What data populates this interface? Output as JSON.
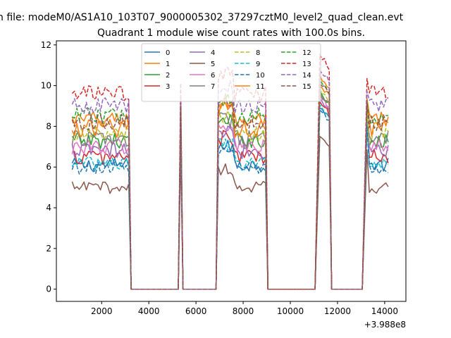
{
  "figure": {
    "suptitle": "n file: modeM0/AS1A10_103T07_9000005302_37297cztM0_level2_quad_clean.evt"
  },
  "chart_data": {
    "type": "line",
    "title": "Quadrant 1 module wise count rates with 100.0s bins.",
    "xlabel": "",
    "ylabel": "",
    "x_offset_label": "+3.988e8",
    "xlim": [
      80,
      14900
    ],
    "ylim": [
      -0.6,
      12.2
    ],
    "xticks": [
      2000,
      4000,
      6000,
      8000,
      10000,
      12000,
      14000
    ],
    "yticks": [
      0,
      2,
      4,
      6,
      8,
      10,
      12
    ],
    "grid": false,
    "legend_position": "upper center",
    "x_segments": [
      {
        "x_start": 750,
        "x_end": 3150,
        "step": 100,
        "on": true
      },
      {
        "x_start": 3250,
        "x_end": 5250,
        "step": 100,
        "on": false
      },
      {
        "x_start": 5350,
        "x_end": 5350,
        "step": 100,
        "on": true
      },
      {
        "x_start": 5450,
        "x_end": 6850,
        "step": 100,
        "on": false
      },
      {
        "x_start": 6950,
        "x_end": 8950,
        "step": 100,
        "on": true
      },
      {
        "x_start": 9050,
        "x_end": 11050,
        "step": 100,
        "on": false
      },
      {
        "x_start": 11250,
        "x_end": 11650,
        "step": 100,
        "on": true
      },
      {
        "x_start": 11750,
        "x_end": 13050,
        "step": 100,
        "on": false
      },
      {
        "x_start": 13250,
        "x_end": 14150,
        "step": 100,
        "on": true
      }
    ],
    "ramps": [
      {
        "from": 3150,
        "to": 3250,
        "dir": "down"
      },
      {
        "from": 5250,
        "to": 5350,
        "dir": "up"
      },
      {
        "from": 5350,
        "to": 5450,
        "dir": "down"
      },
      {
        "from": 6850,
        "to": 6950,
        "dir": "up"
      },
      {
        "from": 8950,
        "to": 9050,
        "dir": "down"
      },
      {
        "from": 11050,
        "to": 11250,
        "dir": "up"
      },
      {
        "from": 11650,
        "to": 11750,
        "dir": "down"
      },
      {
        "from": 13050,
        "to": 13250,
        "dir": "up"
      }
    ],
    "series": [
      {
        "name": "0",
        "color": "#1f77b4",
        "dash": "solid",
        "level": 6.1,
        "peak": 9.0,
        "noise": 0.35
      },
      {
        "name": "1",
        "color": "#ff7f0e",
        "dash": "solid",
        "level": 8.3,
        "peak": 10.4,
        "noise": 0.45
      },
      {
        "name": "2",
        "color": "#2ca02c",
        "dash": "solid",
        "level": 7.3,
        "peak": 9.7,
        "noise": 0.4
      },
      {
        "name": "3",
        "color": "#d62728",
        "dash": "solid",
        "level": 6.5,
        "peak": 9.2,
        "noise": 0.4
      },
      {
        "name": "4",
        "color": "#9467bd",
        "dash": "solid",
        "level": 6.8,
        "peak": 9.4,
        "noise": 0.4
      },
      {
        "name": "5",
        "color": "#8c564b",
        "dash": "solid",
        "level": 5.0,
        "peak": 7.6,
        "noise": 0.3
      },
      {
        "name": "6",
        "color": "#e377c2",
        "dash": "solid",
        "level": 7.0,
        "peak": 9.5,
        "noise": 0.4
      },
      {
        "name": "7",
        "color": "#7f7f7f",
        "dash": "solid",
        "level": 7.4,
        "peak": 9.6,
        "noise": 0.4
      },
      {
        "name": "8",
        "color": "#bcbd22",
        "dash": "dashed",
        "level": 7.6,
        "peak": 9.8,
        "noise": 0.4
      },
      {
        "name": "9",
        "color": "#17becf",
        "dash": "dashed",
        "level": 6.2,
        "peak": 9.1,
        "noise": 0.35
      },
      {
        "name": "10",
        "color": "#1f77b4",
        "dash": "dashed",
        "level": 6.0,
        "peak": 8.9,
        "noise": 0.35
      },
      {
        "name": "11",
        "color": "#ff7f0e",
        "dash": "solid",
        "level": 7.9,
        "peak": 10.1,
        "noise": 0.45
      },
      {
        "name": "12",
        "color": "#2ca02c",
        "dash": "dashed",
        "level": 8.5,
        "peak": 10.3,
        "noise": 0.4
      },
      {
        "name": "13",
        "color": "#d62728",
        "dash": "dashed",
        "level": 9.6,
        "peak": 11.5,
        "noise": 0.4
      },
      {
        "name": "14",
        "color": "#9467bd",
        "dash": "dashed",
        "level": 9.0,
        "peak": 10.8,
        "noise": 0.4
      },
      {
        "name": "15",
        "color": "#8c564b",
        "dash": "dashed",
        "level": 8.2,
        "peak": 10.2,
        "noise": 0.4
      }
    ]
  }
}
